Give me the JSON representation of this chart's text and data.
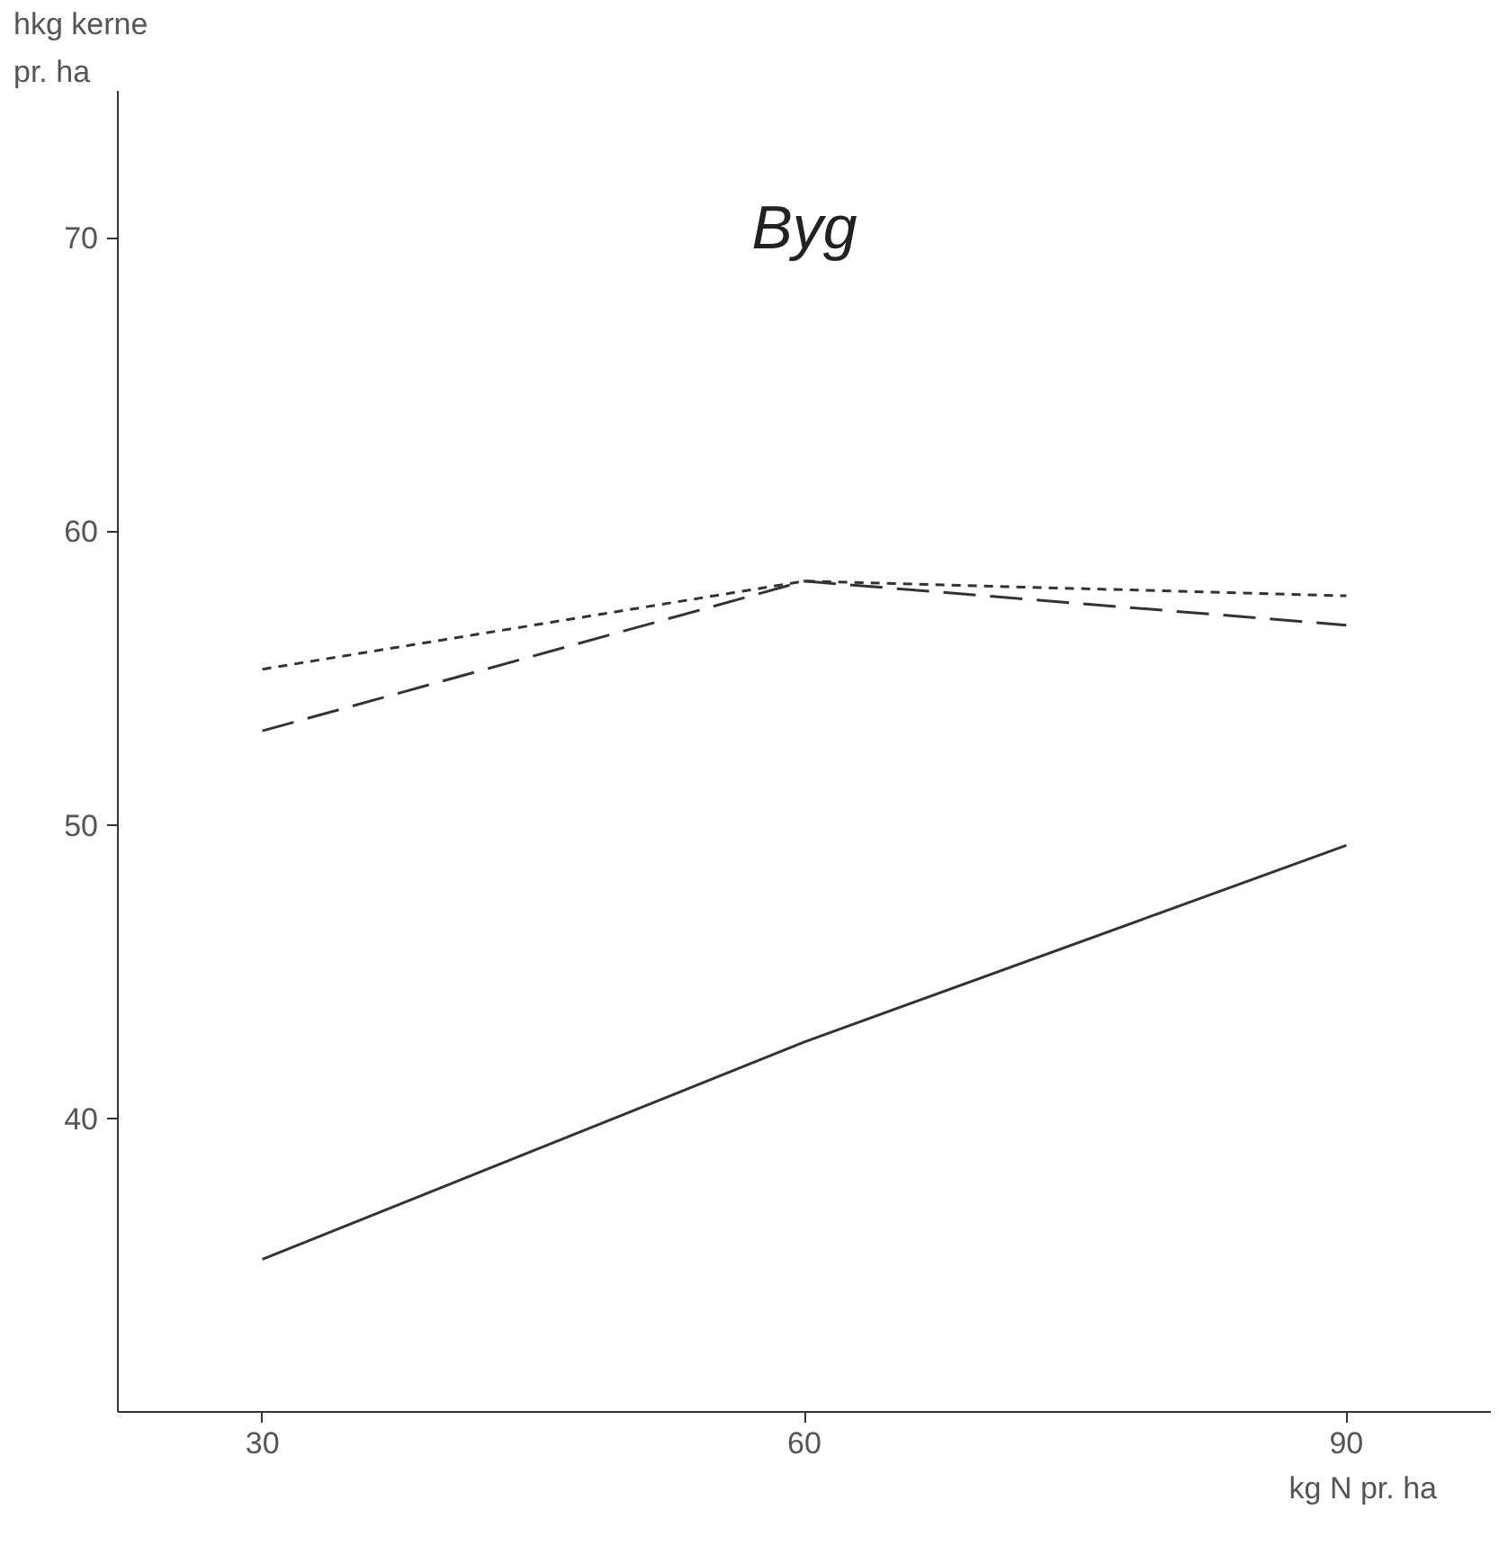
{
  "chart_data": {
    "type": "line",
    "title": "Byg",
    "ylabel": "hkg kerne\npr. ha",
    "xlabel": "kg N pr. ha",
    "x": [
      30,
      60,
      90
    ],
    "series": [
      {
        "color": "#333333",
        "line_style": "dotted",
        "values": [
          55.3,
          58.3,
          57.8
        ]
      },
      {
        "color": "#333333",
        "line_style": "dashed",
        "values": [
          53.2,
          58.3,
          56.8
        ]
      },
      {
        "color": "#333333",
        "line_style": "solid",
        "values": [
          35.2,
          42.6,
          49.3
        ]
      }
    ],
    "xlim": [
      22,
      98
    ],
    "ylim": [
      30,
      75
    ],
    "xticks": [
      30,
      60,
      90
    ],
    "yticks": [
      40,
      50,
      60,
      70
    ],
    "grid": false
  }
}
